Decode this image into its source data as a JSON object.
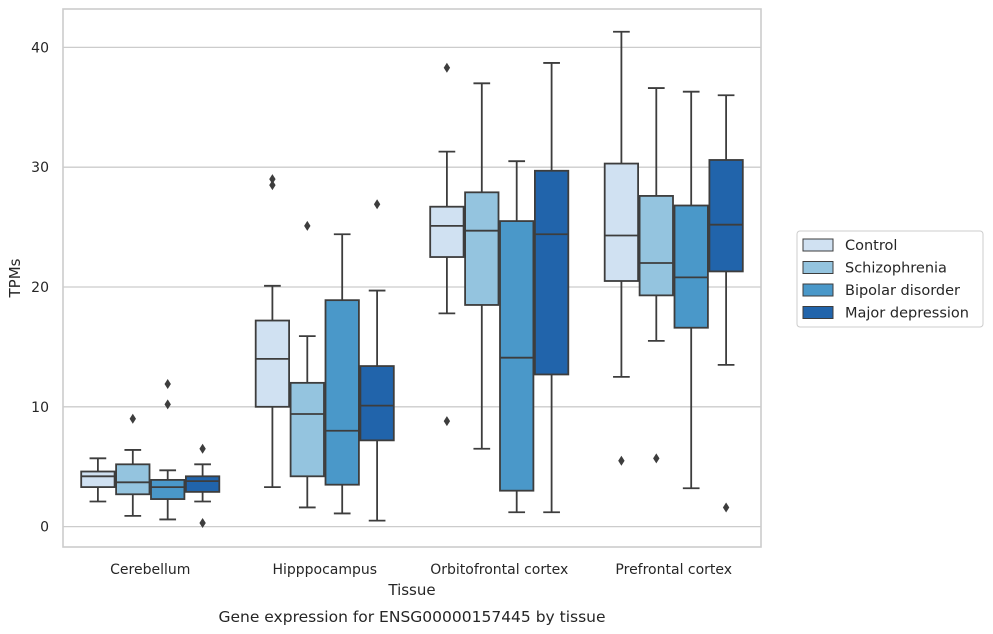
{
  "chart_data": {
    "type": "boxplot",
    "caption": "Gene expression for ENSG00000157445 by tissue",
    "xlabel": "Tissue",
    "ylabel": "TPMs",
    "ylim": [
      -1.7,
      43.2
    ],
    "yticks": [
      0,
      10,
      20,
      30,
      40
    ],
    "grid": "horizontal",
    "legend_position": "right",
    "categories": [
      "Cerebellum",
      "Hipppocampus",
      "Orbitofrontal cortex",
      "Prefrontal cortex"
    ],
    "series": [
      {
        "name": "Control",
        "color": "#d0e1f2",
        "boxes": [
          {
            "whislo": 2.1,
            "q1": 3.3,
            "med": 4.2,
            "q3": 4.6,
            "whishi": 5.7,
            "fliers": []
          },
          {
            "whislo": 3.3,
            "q1": 10.0,
            "med": 14.0,
            "q3": 17.2,
            "whishi": 20.1,
            "fliers": [
              28.5,
              29.0
            ]
          },
          {
            "whislo": 17.8,
            "q1": 22.5,
            "med": 25.1,
            "q3": 26.7,
            "whishi": 31.3,
            "fliers": [
              8.8,
              38.3
            ]
          },
          {
            "whislo": 12.5,
            "q1": 20.5,
            "med": 24.3,
            "q3": 30.3,
            "whishi": 41.3,
            "fliers": [
              5.5
            ]
          }
        ]
      },
      {
        "name": "Schizophrenia",
        "color": "#94c4df",
        "boxes": [
          {
            "whislo": 0.9,
            "q1": 2.7,
            "med": 3.7,
            "q3": 5.2,
            "whishi": 6.4,
            "fliers": [
              9.0
            ]
          },
          {
            "whislo": 1.6,
            "q1": 4.2,
            "med": 9.4,
            "q3": 12.0,
            "whishi": 15.9,
            "fliers": [
              25.1
            ]
          },
          {
            "whislo": 6.5,
            "q1": 18.5,
            "med": 24.7,
            "q3": 27.9,
            "whishi": 37.0,
            "fliers": []
          },
          {
            "whislo": 15.5,
            "q1": 19.3,
            "med": 22.0,
            "q3": 27.6,
            "whishi": 36.6,
            "fliers": [
              5.7
            ]
          }
        ]
      },
      {
        "name": "Bipolar disorder",
        "color": "#4a98c9",
        "boxes": [
          {
            "whislo": 0.6,
            "q1": 2.3,
            "med": 3.3,
            "q3": 3.9,
            "whishi": 4.7,
            "fliers": [
              10.2,
              11.9
            ]
          },
          {
            "whislo": 1.1,
            "q1": 3.5,
            "med": 8.0,
            "q3": 18.9,
            "whishi": 24.4,
            "fliers": []
          },
          {
            "whislo": 1.2,
            "q1": 3.0,
            "med": 14.1,
            "q3": 25.5,
            "whishi": 30.5,
            "fliers": []
          },
          {
            "whislo": 3.2,
            "q1": 16.6,
            "med": 20.8,
            "q3": 26.8,
            "whishi": 36.3,
            "fliers": []
          }
        ]
      },
      {
        "name": "Major depression",
        "color": "#2164ab",
        "boxes": [
          {
            "whislo": 2.1,
            "q1": 2.9,
            "med": 3.8,
            "q3": 4.2,
            "whishi": 5.2,
            "fliers": [
              0.3,
              6.5
            ]
          },
          {
            "whislo": 0.5,
            "q1": 7.2,
            "med": 10.1,
            "q3": 13.4,
            "whishi": 19.7,
            "fliers": [
              26.9
            ]
          },
          {
            "whislo": 1.2,
            "q1": 12.7,
            "med": 24.4,
            "q3": 29.7,
            "whishi": 38.7,
            "fliers": []
          },
          {
            "whislo": 13.5,
            "q1": 21.3,
            "med": 25.2,
            "q3": 30.6,
            "whishi": 36.0,
            "fliers": [
              1.6
            ]
          }
        ]
      }
    ]
  }
}
